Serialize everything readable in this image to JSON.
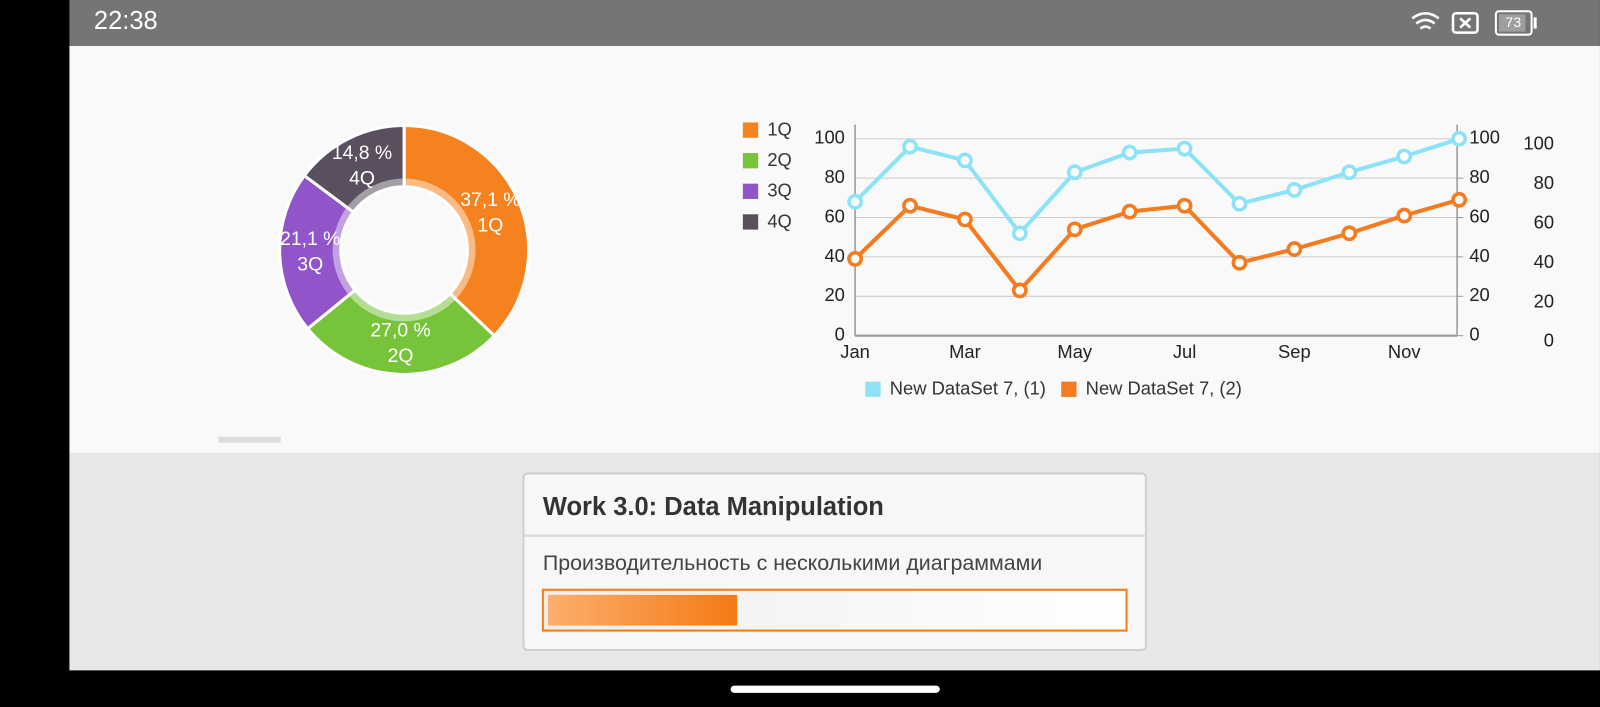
{
  "status_bar": {
    "time": "22:38",
    "battery": "73"
  },
  "chart_data": [
    {
      "type": "pie",
      "categories": [
        "1Q",
        "2Q",
        "3Q",
        "4Q"
      ],
      "values": [
        37.1,
        27.0,
        21.1,
        14.8
      ],
      "value_labels": [
        "37,1 %",
        "27,0 %",
        "21,1 %",
        "14,8 %"
      ],
      "colors": [
        "#f5821f",
        "#77c43b",
        "#9155c9",
        "#5a4f5e"
      ],
      "legend": "right"
    },
    {
      "type": "line",
      "categories": [
        "Jan",
        null,
        "Mar",
        null,
        "May",
        null,
        "Jul",
        null,
        "Sep",
        null,
        "Nov",
        null
      ],
      "series": [
        {
          "name": "New DataSet 7, (1)",
          "color": "#8de3f5",
          "values": [
            68,
            96,
            89,
            52,
            83,
            93,
            95,
            67,
            74,
            83,
            91,
            100
          ]
        },
        {
          "name": "New DataSet 7, (2)",
          "color": "#f47b20",
          "values": [
            39,
            66,
            59,
            23,
            54,
            63,
            66,
            37,
            44,
            52,
            61,
            69
          ]
        }
      ],
      "ylim": [
        0,
        100
      ],
      "yticks": [
        0,
        20,
        40,
        60,
        80,
        100
      ],
      "y2lim": [
        0,
        100
      ],
      "y2ticks": [
        0,
        20,
        40,
        60,
        80,
        100
      ],
      "y3lim": [
        0,
        100
      ],
      "y3ticks": [
        0,
        20,
        40,
        60,
        80,
        100
      ],
      "grid": true,
      "legend": "bottom"
    }
  ],
  "card": {
    "title": "Work 3.0: Data Manipulation",
    "subtitle": "Производительность с несколькими диаграммами",
    "progress": 33
  }
}
